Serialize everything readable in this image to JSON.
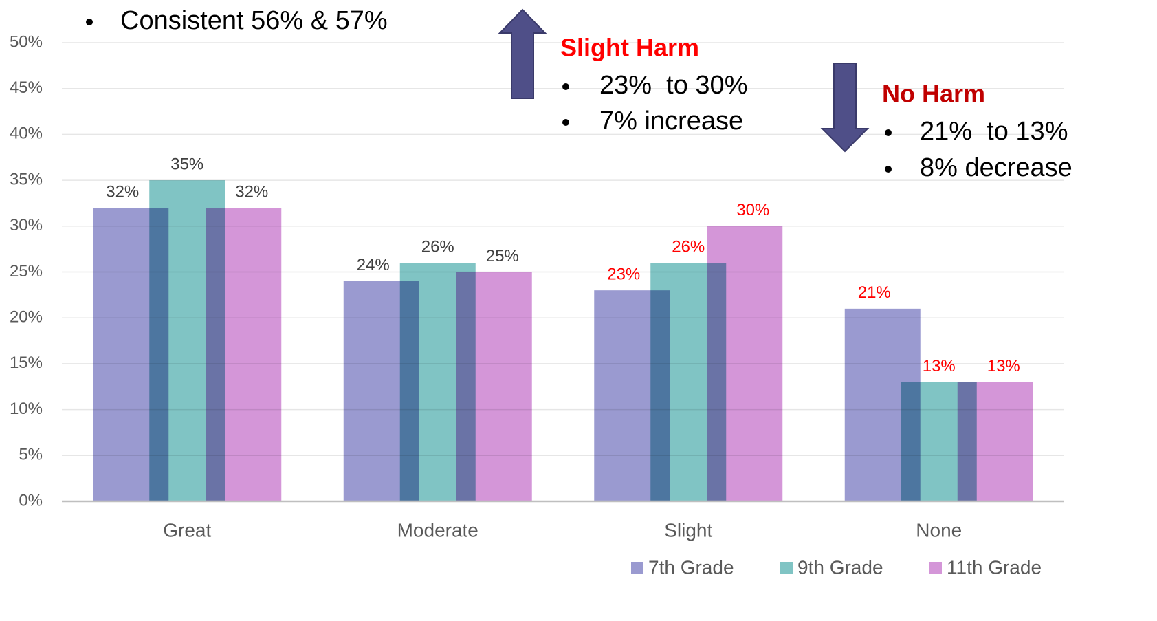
{
  "chart_data": {
    "type": "bar",
    "categories": [
      "Great",
      "Moderate",
      "Slight",
      "None"
    ],
    "series": [
      {
        "name": "7th Grade",
        "color": "#9a9ad0",
        "values": [
          32,
          24,
          23,
          21
        ],
        "value_labels": [
          "32%",
          "24%",
          "23%",
          "21%"
        ],
        "label_colors": [
          "#404040",
          "#404040",
          "#ff0000",
          "#ff0000"
        ]
      },
      {
        "name": "9th Grade",
        "color": "#80c4c4",
        "values": [
          35,
          26,
          26,
          13
        ],
        "value_labels": [
          "35%",
          "26%",
          "26%",
          "13%"
        ],
        "label_colors": [
          "#404040",
          "#404040",
          "#ff0000",
          "#ff0000"
        ]
      },
      {
        "name": "11th Grade",
        "color": "#d496d8",
        "values": [
          32,
          25,
          30,
          13
        ],
        "value_labels": [
          "32%",
          "25%",
          "30%",
          "13%"
        ],
        "label_colors": [
          "#404040",
          "#404040",
          "#ff0000",
          "#ff0000"
        ]
      }
    ],
    "ylim": [
      0,
      50
    ],
    "yticks": [
      {
        "value": 0,
        "label": "0%"
      },
      {
        "value": 5,
        "label": "5%"
      },
      {
        "value": 10,
        "label": "10%"
      },
      {
        "value": 15,
        "label": "15%"
      },
      {
        "value": 20,
        "label": "20%"
      },
      {
        "value": 25,
        "label": "25%"
      },
      {
        "value": 30,
        "label": "30%"
      },
      {
        "value": 35,
        "label": "35%"
      },
      {
        "value": 40,
        "label": "40%"
      },
      {
        "value": 45,
        "label": "45%"
      },
      {
        "value": 50,
        "label": "50%"
      }
    ],
    "grid": true,
    "legend": "bottom-right",
    "annotations": [
      {
        "bullets": [
          "Consistent 56% & 57%"
        ]
      },
      {
        "title": "Slight Harm",
        "color": "#ff0000",
        "bullets": [
          "23%  to 30%",
          "7% increase"
        ]
      },
      {
        "title": "No Harm",
        "color": "#c00000",
        "bullets": [
          "21%  to 13%",
          "8% decrease"
        ]
      }
    ]
  }
}
